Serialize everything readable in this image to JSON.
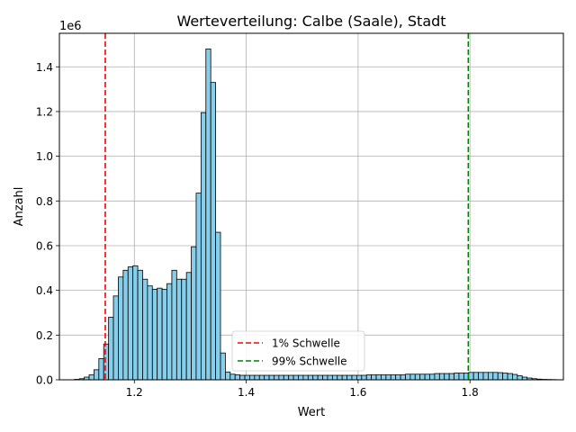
{
  "chart_data": {
    "type": "histogram",
    "title": "Werteverteilung: Calbe (Saale), Stadt",
    "xlabel": "Wert",
    "ylabel": "Anzahl",
    "y_scale_label": "1e6",
    "xlim": [
      1.066,
      1.967
    ],
    "ylim": [
      0,
      1550000
    ],
    "x_ticks": [
      {
        "value": 1.2,
        "label": "1.2"
      },
      {
        "value": 1.4,
        "label": "1.4"
      },
      {
        "value": 1.6,
        "label": "1.6"
      },
      {
        "value": 1.8,
        "label": "1.8"
      }
    ],
    "y_ticks": [
      {
        "value": 0,
        "label": "0.0"
      },
      {
        "value": 200000,
        "label": "0.2"
      },
      {
        "value": 400000,
        "label": "0.4"
      },
      {
        "value": 600000,
        "label": "0.6"
      },
      {
        "value": 800000,
        "label": "0.8"
      },
      {
        "value": 1000000,
        "label": "1.0"
      },
      {
        "value": 1200000,
        "label": "1.2"
      },
      {
        "value": 1400000,
        "label": "1.4"
      }
    ],
    "grid": true,
    "bar_color": "#87ceeb",
    "bar_edge_color": "#000000",
    "bins": {
      "start": 1.093,
      "width": 0.0087,
      "counts": [
        2000,
        5000,
        12000,
        22000,
        45000,
        95000,
        160000,
        280000,
        375000,
        460000,
        490000,
        505000,
        510000,
        490000,
        450000,
        420000,
        405000,
        410000,
        405000,
        430000,
        490000,
        450000,
        450000,
        480000,
        595000,
        835000,
        1195000,
        1480000,
        1330000,
        660000,
        120000,
        35000,
        25000,
        22000,
        20000,
        20000,
        20000,
        20000,
        20000,
        20000,
        20000,
        20000,
        20000,
        20000,
        20000,
        20000,
        20000,
        20000,
        20000,
        20000,
        20000,
        20000,
        20000,
        20000,
        20000,
        20000,
        20000,
        20000,
        20000,
        20000,
        22000,
        22000,
        22000,
        22000,
        22000,
        22000,
        22000,
        22000,
        25000,
        25000,
        25000,
        25000,
        25000,
        25000,
        28000,
        28000,
        28000,
        28000,
        30000,
        30000,
        30000,
        33000,
        33000,
        33000,
        33000,
        33000,
        33000,
        32000,
        30000,
        28000,
        24000,
        18000,
        12000,
        8000,
        5000,
        3000,
        2000,
        1500,
        1000,
        500
      ]
    },
    "thresholds": [
      {
        "label": "1% Schwelle",
        "value": 1.148,
        "color": "#ff0000"
      },
      {
        "label": "99% Schwelle",
        "value": 1.797,
        "color": "#008000"
      }
    ],
    "legend_position": "lower center"
  }
}
